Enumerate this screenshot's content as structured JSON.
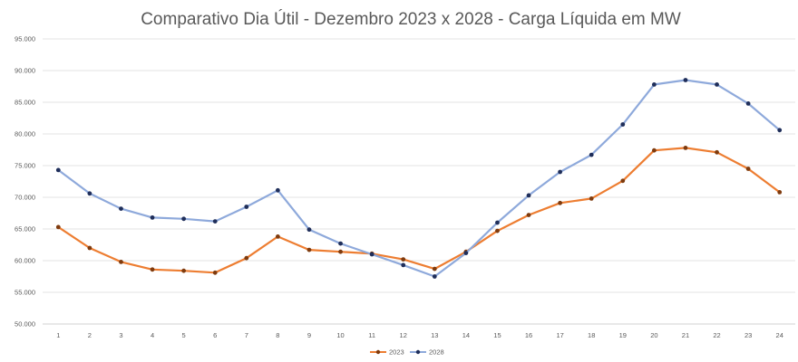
{
  "chart_data": {
    "type": "line",
    "title": "Comparativo Dia Útil - Dezembro 2023 x 2028 - Carga Líquida em MW",
    "xlabel": "",
    "ylabel": "",
    "categories": [
      "1",
      "2",
      "3",
      "4",
      "5",
      "6",
      "7",
      "8",
      "9",
      "10",
      "11",
      "12",
      "13",
      "14",
      "15",
      "16",
      "17",
      "18",
      "19",
      "20",
      "21",
      "22",
      "23",
      "24"
    ],
    "ylim": [
      50000,
      95000
    ],
    "yticks": [
      50000,
      55000,
      60000,
      65000,
      70000,
      75000,
      80000,
      85000,
      90000,
      95000
    ],
    "ytick_labels": [
      "50.000",
      "55.000",
      "60.000",
      "65.000",
      "70.000",
      "75.000",
      "80.000",
      "85.000",
      "90.000",
      "95.000"
    ],
    "grid": true,
    "legend_position": "bottom",
    "series": [
      {
        "name": "2023",
        "color": "#ED7D31",
        "marker_color": "#7f3b0e",
        "values": [
          65300,
          62000,
          59800,
          58600,
          58400,
          58100,
          60400,
          63800,
          61700,
          61400,
          61100,
          60200,
          58700,
          61400,
          64700,
          67200,
          69100,
          69800,
          72600,
          77400,
          77800,
          77100,
          74500,
          70800
        ]
      },
      {
        "name": "2028",
        "color": "#8EA9DB",
        "marker_color": "#1f2e5a",
        "values": [
          74300,
          70600,
          68200,
          66800,
          66600,
          66200,
          68500,
          71100,
          64900,
          62700,
          61000,
          59300,
          57500,
          61200,
          66000,
          70300,
          74000,
          76700,
          81500,
          87800,
          88500,
          87800,
          84800,
          80600
        ]
      }
    ]
  }
}
